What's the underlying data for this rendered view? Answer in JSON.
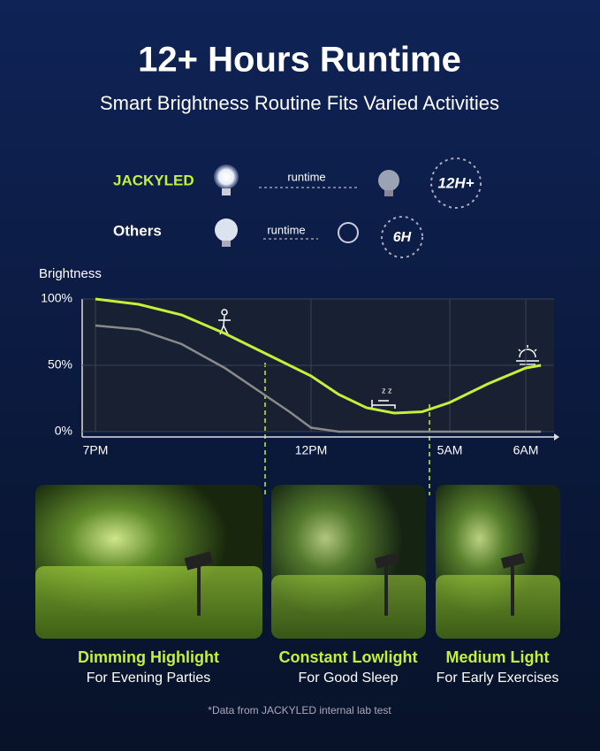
{
  "header": {
    "title": "12+ Hours Runtime",
    "subtitle": "Smart Brightness Routine Fits Varied Activities"
  },
  "comparison": [
    {
      "brand": "JACKYLED",
      "arrow_label": "runtime",
      "badge": "12H+"
    },
    {
      "brand": "Others",
      "arrow_label": "runtime",
      "badge": "6H"
    }
  ],
  "chart": {
    "type": "line",
    "ylabel": "Brightness",
    "xlim": [
      0,
      11.2
    ],
    "xticks": [
      {
        "value": 0,
        "label": "7PM"
      },
      {
        "value": 5,
        "label": "12PM"
      },
      {
        "value": 10,
        "label": "5AM"
      },
      {
        "value": 11,
        "label": "6AM"
      }
    ],
    "ylim": [
      0,
      100
    ],
    "yticks": [
      {
        "value": 0,
        "label": "0%"
      },
      {
        "value": 50,
        "label": "50%"
      },
      {
        "value": 100,
        "label": "100%"
      }
    ],
    "grid": true,
    "series": [
      {
        "color": "#c5f03a",
        "x": [
          0,
          1,
          2,
          3,
          4,
          5,
          6,
          7,
          8,
          9,
          10,
          10.5,
          11,
          11.2
        ],
        "values": [
          100,
          96,
          88,
          74,
          58,
          42,
          28,
          18,
          14,
          15,
          22,
          36,
          48,
          50
        ]
      },
      {
        "color": "#8a8a8a",
        "x": [
          0,
          1,
          2,
          3,
          4,
          4.5,
          5,
          6,
          11.2
        ],
        "values": [
          80,
          77,
          66,
          48,
          26,
          15,
          3,
          0,
          0
        ]
      }
    ]
  },
  "scenes": [
    {
      "title": "Dimming Highlight",
      "subtitle": "For Evening Parties"
    },
    {
      "title": "Constant Lowlight",
      "subtitle": "For Good Sleep"
    },
    {
      "title": "Medium Light",
      "subtitle": "For Early Exercises"
    }
  ],
  "footnote": "*Data from JACKYLED internal lab test"
}
